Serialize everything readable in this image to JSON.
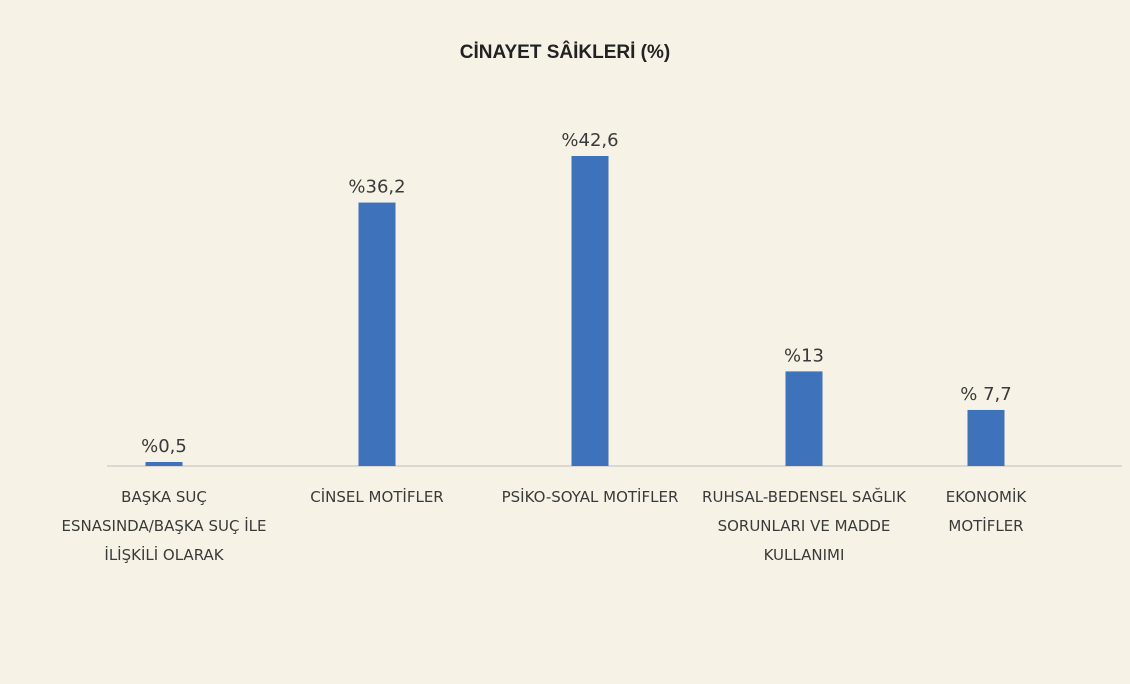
{
  "colors": {
    "background": "#f6f2e5",
    "bar": "#3e72bb",
    "axis": "#c9c9c9",
    "text": "#3a3a3a"
  },
  "chart_data": {
    "type": "bar",
    "title": "CİNAYET SÂİKLERİ (%)",
    "categories": [
      [
        "BAŞKA SUÇ",
        "ESNASINDA/BAŞKA SUÇ İLE",
        "İLİŞKİLİ OLARAK"
      ],
      [
        "CİNSEL MOTİFLER"
      ],
      [
        "PSİKO-SOYAL MOTİFLER"
      ],
      [
        "RUHSAL-BEDENSEL SAĞLIK",
        "SORUNLARI VE MADDE",
        "KULLANIMI"
      ],
      [
        "EKONOMİK",
        "MOTİFLER"
      ]
    ],
    "values": [
      0.5,
      36.2,
      42.6,
      13,
      7.7
    ],
    "data_labels": [
      "%0,5",
      "%36,2",
      "%42,6",
      "%13",
      "% 7,7"
    ],
    "ylim": [
      0,
      42.6
    ],
    "grid": false,
    "legend": "none"
  }
}
